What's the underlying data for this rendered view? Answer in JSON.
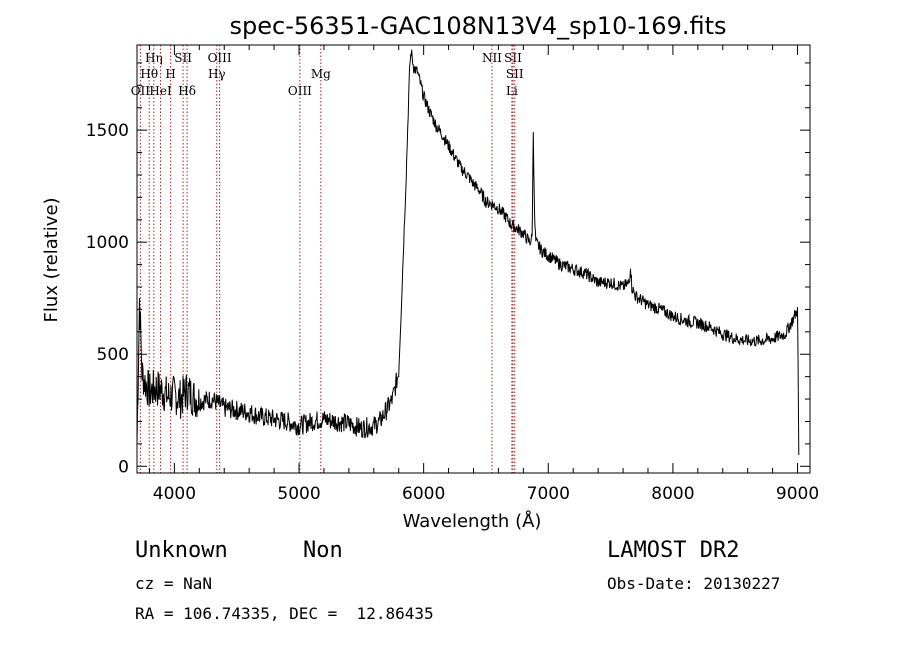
{
  "chart_data": {
    "type": "line",
    "title": "spec-56351-GAC108N13V4_sp10-169.fits",
    "xlabel": "Wavelength (Å)",
    "ylabel": "Flux (relative)",
    "xlim": [
      3700,
      9100
    ],
    "ylim": [
      -30,
      1880
    ],
    "xticks": [
      4000,
      5000,
      6000,
      7000,
      8000,
      9000
    ],
    "yticks": [
      0,
      500,
      1000,
      1500
    ],
    "grid": false,
    "series": [
      {
        "x": [
          3700,
          3720,
          3740,
          3760,
          3780,
          3800,
          3850,
          3900,
          3950,
          4000,
          4050,
          4100,
          4150,
          4200,
          4300,
          4400,
          4500,
          4600,
          4700,
          4800,
          4900,
          5000,
          5100,
          5200,
          5300,
          5400,
          5500,
          5600,
          5650,
          5700,
          5750,
          5800,
          5820,
          5840,
          5860,
          5880,
          5890,
          5900,
          5920,
          5950,
          6000,
          6050,
          6100,
          6150,
          6200,
          6250,
          6300,
          6350,
          6400,
          6450,
          6500,
          6550,
          6600,
          6650,
          6700,
          6750,
          6800,
          6850,
          6870,
          6880,
          6890,
          6900,
          6950,
          7000,
          7100,
          7200,
          7300,
          7400,
          7500,
          7600,
          7650,
          7660,
          7670,
          7700,
          7800,
          7900,
          8000,
          8100,
          8200,
          8300,
          8400,
          8500,
          8600,
          8700,
          8800,
          8900,
          8950,
          9000,
          9010
        ],
        "y": [
          100,
          750,
          420,
          380,
          360,
          330,
          350,
          340,
          310,
          320,
          300,
          340,
          310,
          290,
          300,
          260,
          250,
          240,
          220,
          210,
          200,
          180,
          200,
          210,
          200,
          190,
          170,
          180,
          200,
          250,
          300,
          420,
          700,
          1000,
          1300,
          1650,
          1800,
          1850,
          1780,
          1760,
          1650,
          1580,
          1520,
          1480,
          1430,
          1380,
          1330,
          1300,
          1260,
          1230,
          1180,
          1170,
          1150,
          1120,
          1080,
          1060,
          1040,
          1000,
          1020,
          1500,
          1100,
          1000,
          960,
          940,
          900,
          880,
          860,
          820,
          820,
          800,
          820,
          900,
          800,
          760,
          720,
          700,
          670,
          650,
          640,
          620,
          590,
          570,
          560,
          560,
          570,
          590,
          640,
          700,
          50
        ]
      }
    ],
    "lines": [
      {
        "name": "OII",
        "wave": 3727,
        "row": 3
      },
      {
        "name": "Hθ",
        "wave": 3798,
        "row": 2
      },
      {
        "name": "Hη",
        "wave": 3835,
        "row": 1
      },
      {
        "name": "HeI",
        "wave": 3889,
        "row": 3
      },
      {
        "name": "H",
        "wave": 3970,
        "row": 2
      },
      {
        "name": "SII",
        "wave": 4070,
        "row": 1
      },
      {
        "name": "Hδ",
        "wave": 4102,
        "row": 3
      },
      {
        "name": "Hγ",
        "wave": 4340,
        "row": 2
      },
      {
        "name": "OIII",
        "wave": 4363,
        "row": 1
      },
      {
        "name": "OIII",
        "wave": 5007,
        "row": 3
      },
      {
        "name": "Mg",
        "wave": 5175,
        "row": 2
      },
      {
        "name": "NII",
        "wave": 6548,
        "row": 1
      },
      {
        "name": "SII",
        "wave": 6717,
        "row": 1
      },
      {
        "name": "SII",
        "wave": 6731,
        "row": 2
      },
      {
        "name": "Li",
        "wave": 6708,
        "row": 3
      }
    ]
  },
  "info": {
    "classification": "Unknown",
    "subclass": "Non",
    "survey": "LAMOST DR2",
    "cz": "cz = NaN",
    "obsdate": "Obs-Date: 20130227",
    "coords": "RA = 106.74335, DEC =  12.86435"
  }
}
